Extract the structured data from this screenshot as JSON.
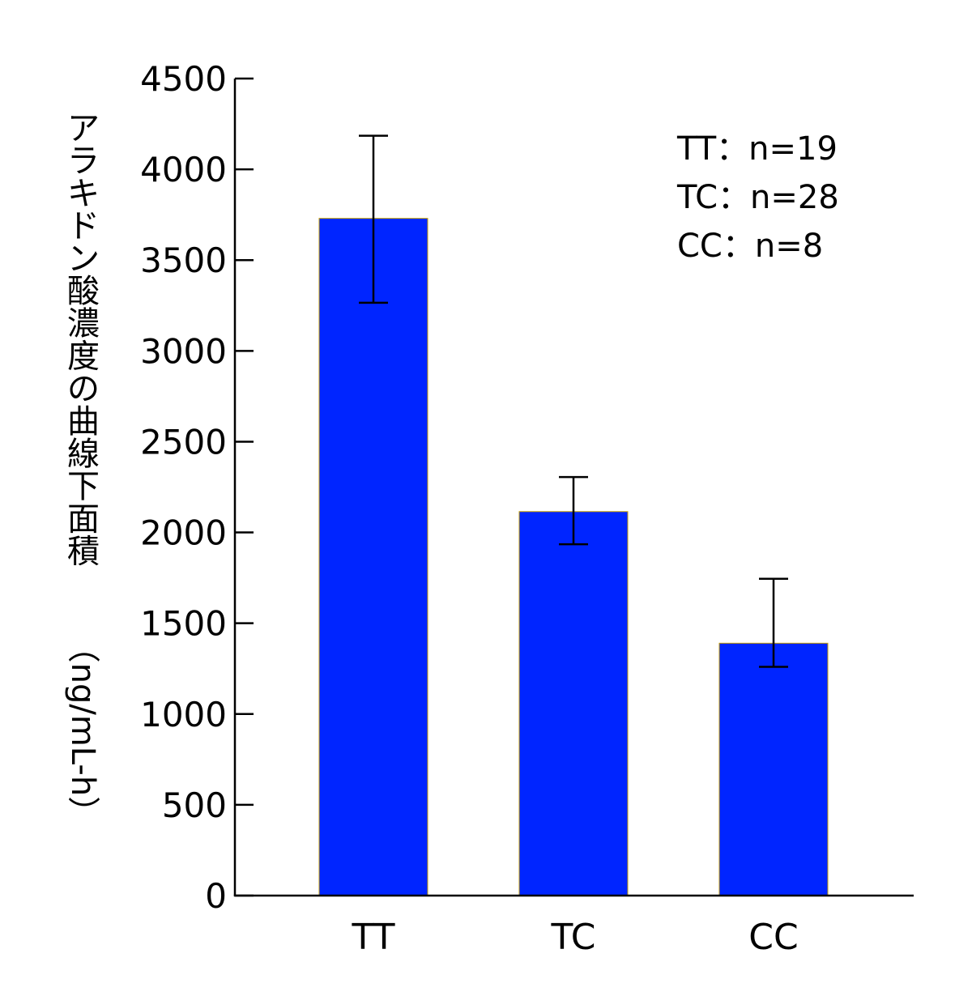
{
  "chart_data": {
    "type": "bar",
    "categories": [
      "TT",
      "TC",
      "CC"
    ],
    "values": [
      3730,
      2115,
      1390
    ],
    "error_upper": [
      4185,
      2305,
      1745
    ],
    "error_lower": [
      3265,
      1935,
      1260
    ],
    "ylabel": "アラキドン酸濃度の曲線下面積（ng/mL-h）",
    "ylim": [
      0,
      4500
    ],
    "yticks": [
      0,
      500,
      1000,
      1500,
      2000,
      2500,
      3000,
      3500,
      4000,
      4500
    ],
    "grid": false,
    "legend_placement": "top-right",
    "annotations": [
      "TT：n=19",
      "TC：n=28",
      "CC：n=8"
    ],
    "bar_color": "#0025ff",
    "bar_edge_color": "#c8a000"
  }
}
